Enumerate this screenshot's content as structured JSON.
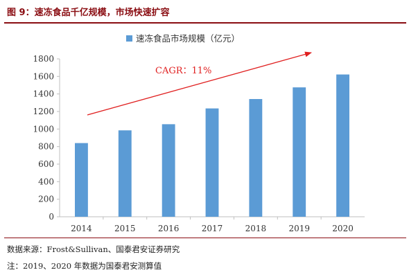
{
  "figure": {
    "title": "图 9：速冻食品千亿规模，市场快速扩容",
    "source": "数据来源：Frost&Sullivan、国泰君安证券研究",
    "note": "注：2019、2020 年数据为国泰君安测算值"
  },
  "colors": {
    "accent": "#8a0d12",
    "bar": "#5b9bd5",
    "arrow": "#e02020",
    "axis": "#bfbfbf"
  },
  "chart_data": {
    "type": "bar",
    "title": "",
    "xlabel": "",
    "ylabel": "",
    "categories": [
      "2014",
      "2015",
      "2016",
      "2017",
      "2018",
      "2019",
      "2020"
    ],
    "series": [
      {
        "name": "速冻食品市场规模（亿元）",
        "values": [
          840,
          985,
          1055,
          1235,
          1342,
          1475,
          1622
        ]
      }
    ],
    "ylim": [
      0,
      1800
    ],
    "yticks": [
      0,
      200,
      400,
      600,
      800,
      1000,
      1200,
      1400,
      1600,
      1800
    ],
    "grid": false,
    "legend_position": "top-center",
    "annotations": [
      {
        "text": "CAGR：11%",
        "type": "trend-arrow"
      }
    ]
  }
}
